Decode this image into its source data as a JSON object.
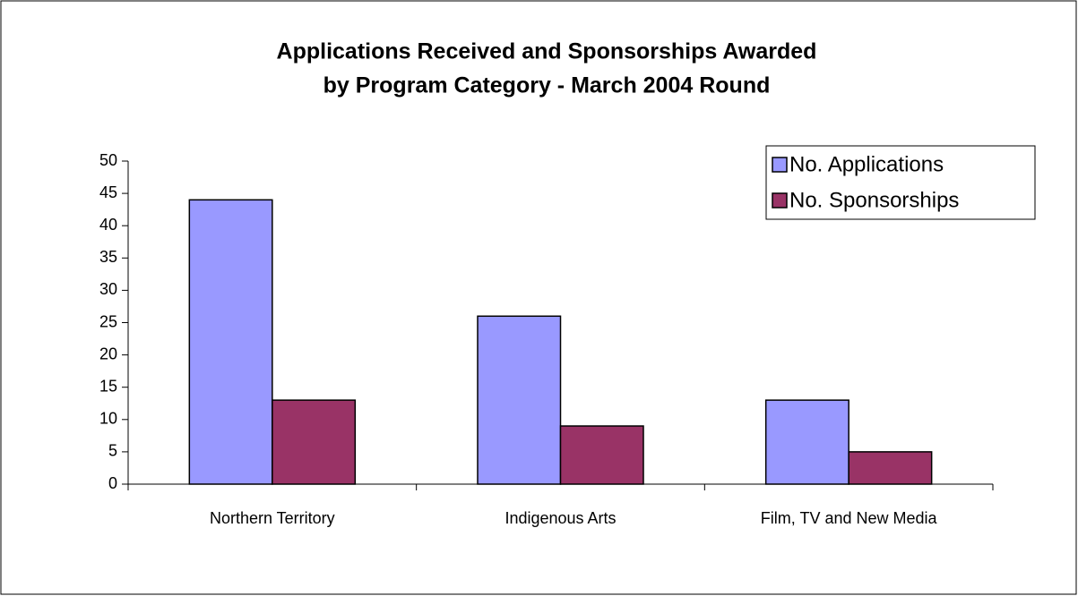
{
  "chart_data": {
    "type": "bar",
    "title": [
      "Applications Received and Sponsorships Awarded",
      "by Program Category - March 2004 Round"
    ],
    "categories": [
      "Northern Territory",
      "Indigenous Arts",
      "Film, TV and New Media"
    ],
    "series": [
      {
        "name": "No. Applications",
        "color": "#9999ff",
        "values": [
          44,
          26,
          13
        ]
      },
      {
        "name": "No. Sponsorships",
        "color": "#993366",
        "values": [
          13,
          9,
          5
        ]
      }
    ],
    "ylim": [
      0,
      50
    ],
    "yticks": [
      0,
      5,
      10,
      15,
      20,
      25,
      30,
      35,
      40,
      45,
      50
    ],
    "grid": false,
    "legend": "top-right"
  }
}
